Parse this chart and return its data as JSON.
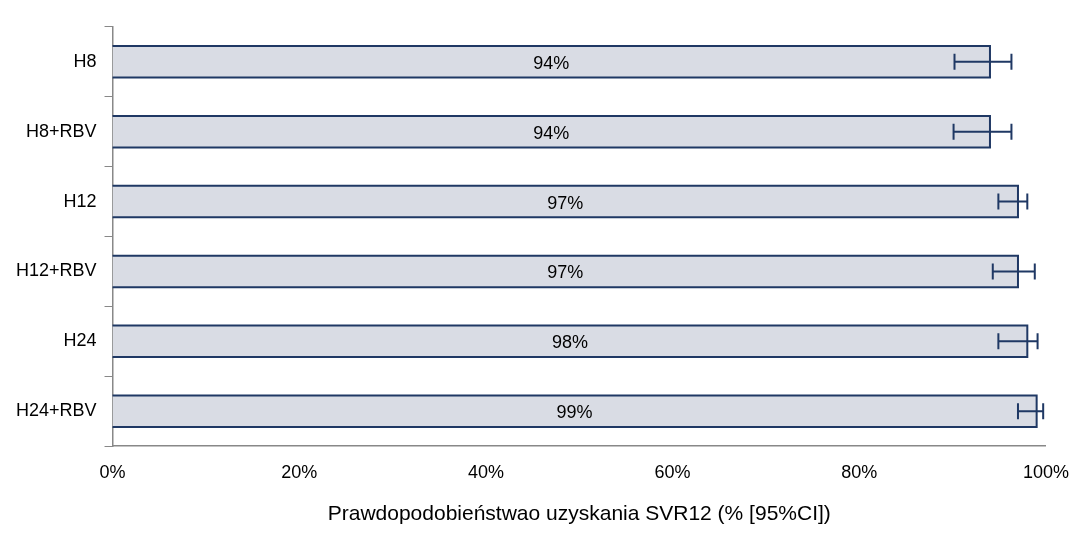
{
  "chart_data": {
    "type": "bar",
    "orientation": "horizontal",
    "xlabel": "Prawdopodobieństwao uzyskania SVR12 (% [95%CI])",
    "categories": [
      "H8",
      "H8+RBV",
      "H12",
      "H12+RBV",
      "H24",
      "H24+RBV"
    ],
    "values": [
      94,
      94,
      97,
      97,
      98,
      99
    ],
    "value_labels": [
      "94%",
      "94%",
      "97%",
      "97%",
      "98%",
      "99%"
    ],
    "errors": [
      [
        90.2,
        96.3
      ],
      [
        90.1,
        96.3
      ],
      [
        94.9,
        98.0
      ],
      [
        94.3,
        98.8
      ],
      [
        94.9,
        99.1
      ],
      [
        97.0,
        99.7
      ]
    ],
    "color": "#d9dce4",
    "xlim": [
      0,
      100
    ],
    "xticks": [
      {
        "value": 0,
        "label": "0%"
      },
      {
        "value": 20,
        "label": "20%"
      },
      {
        "value": 40,
        "label": "40%"
      },
      {
        "value": 60,
        "label": "60%"
      },
      {
        "value": 80,
        "label": "80%"
      },
      {
        "value": 100,
        "label": "100%"
      }
    ],
    "grid": false,
    "legend": false
  }
}
